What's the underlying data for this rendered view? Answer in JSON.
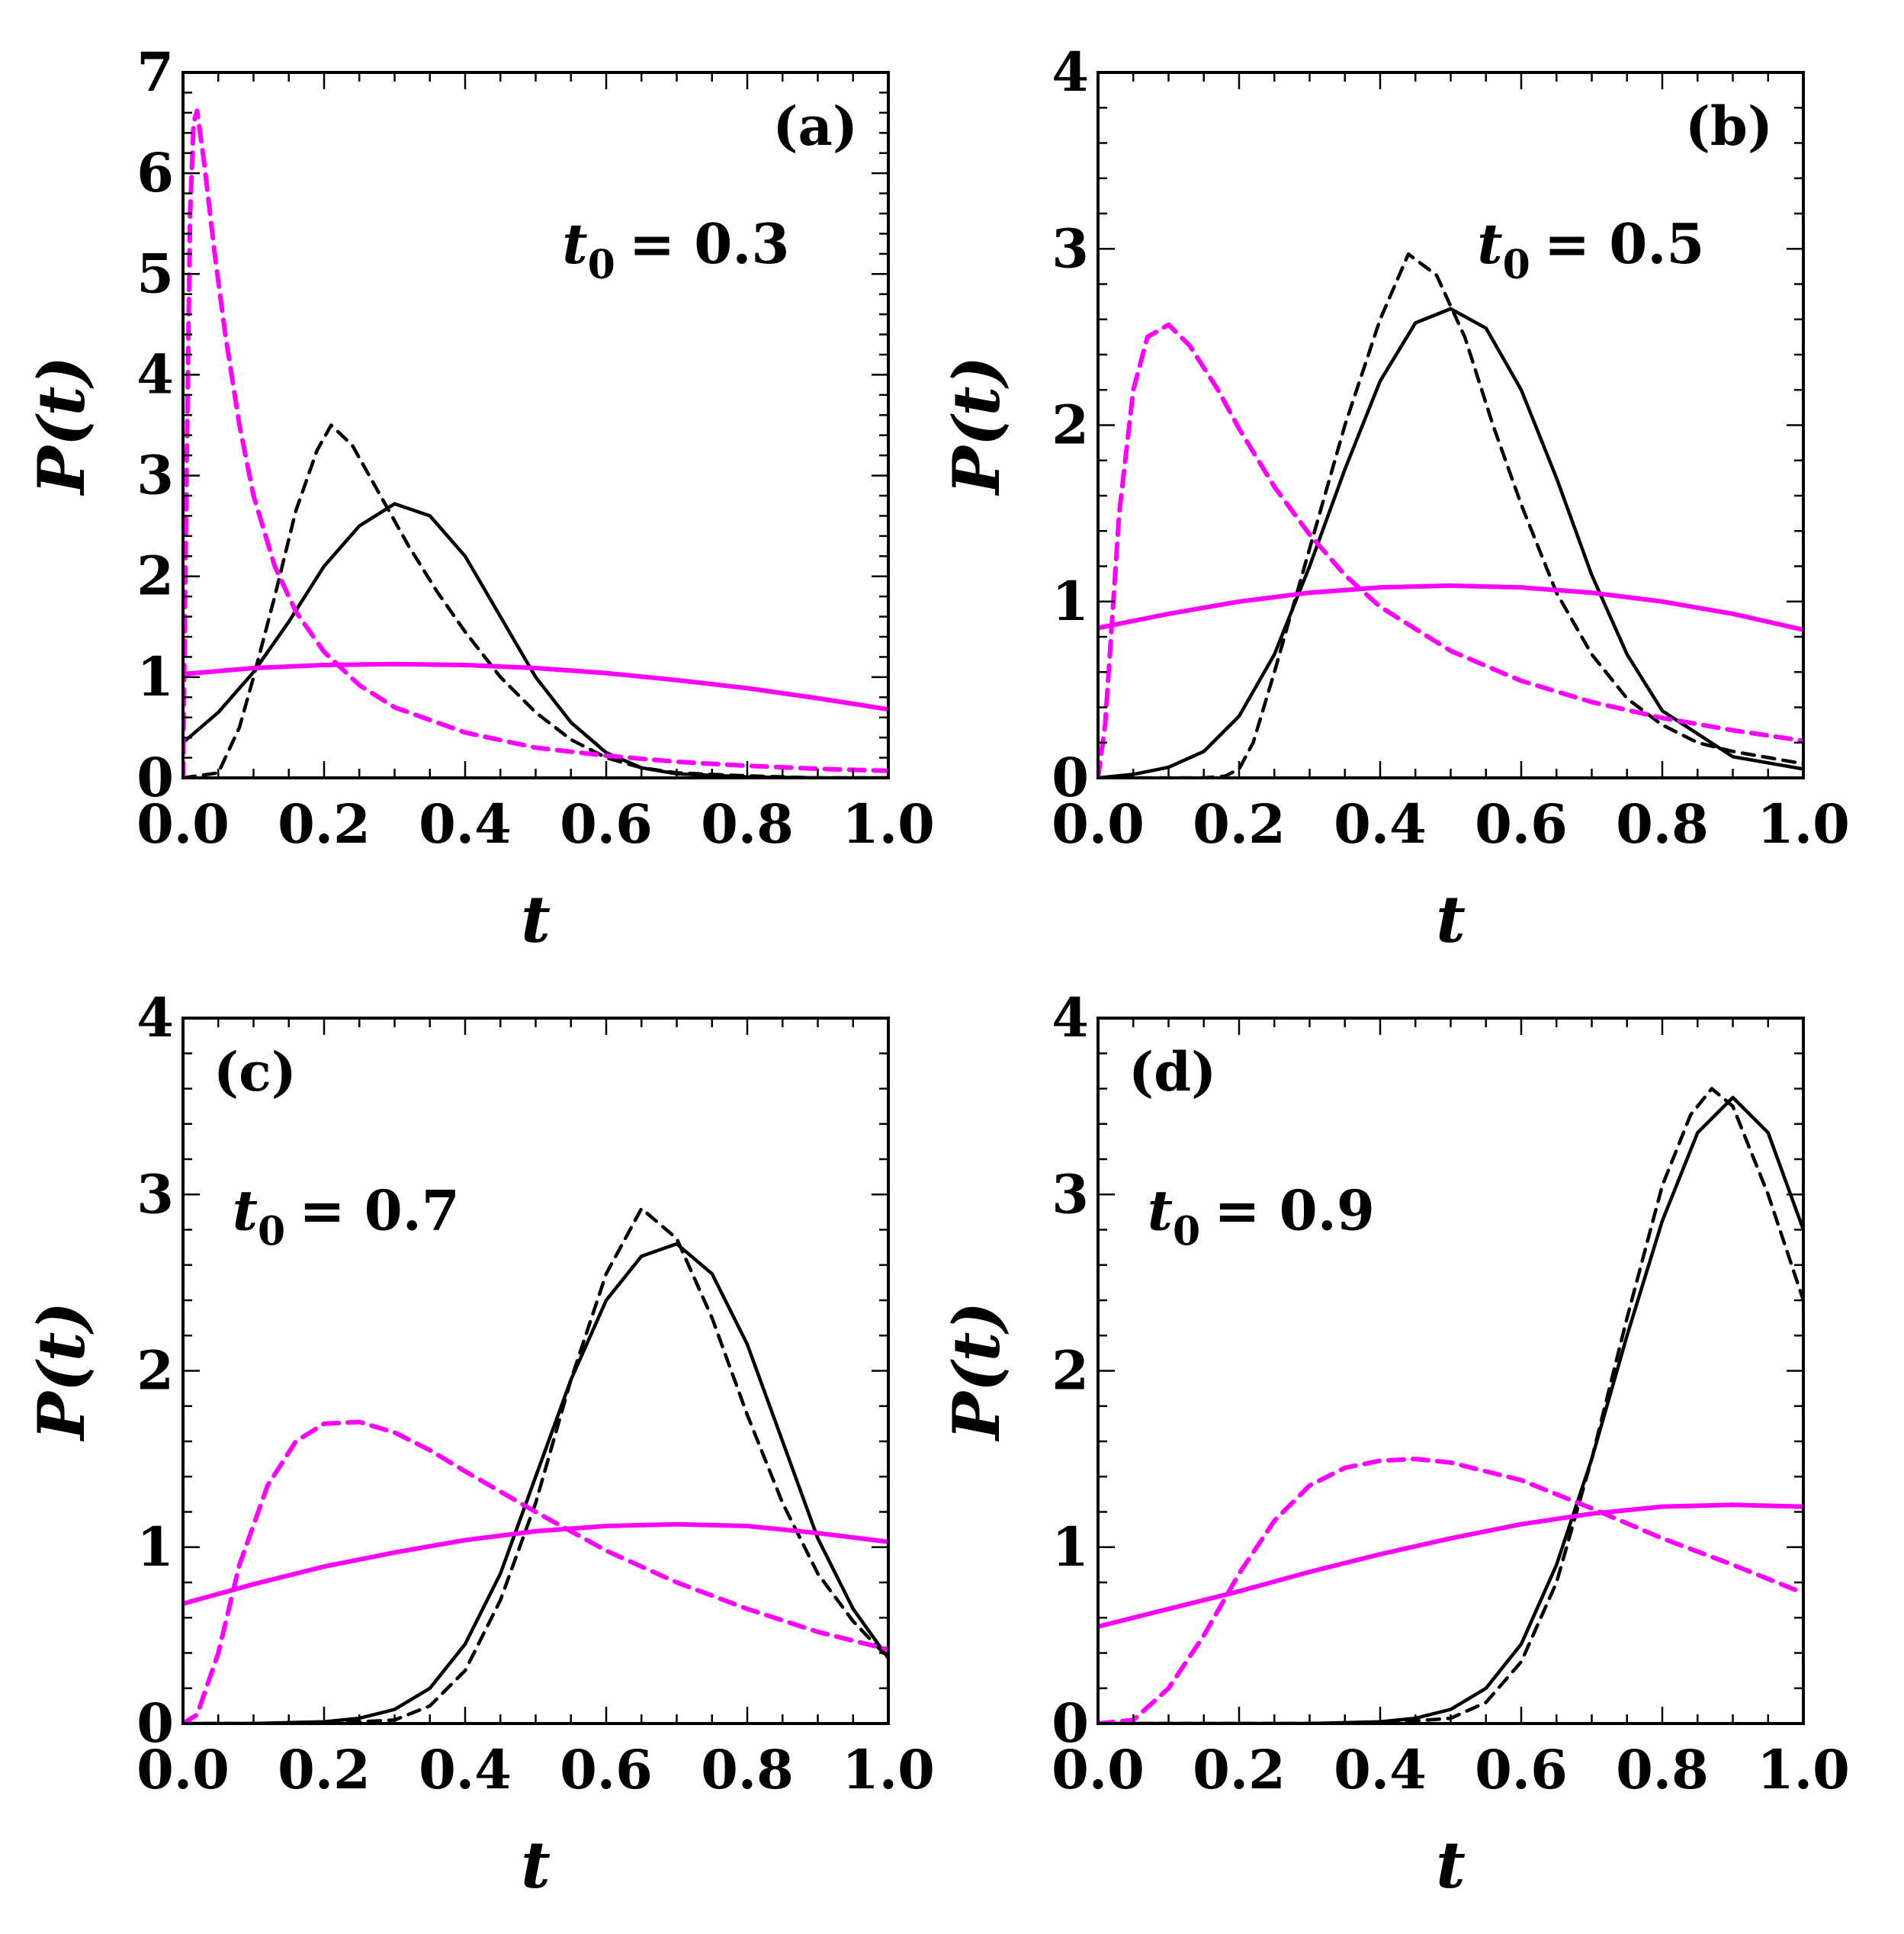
{
  "colors": {
    "black": "#000000",
    "magenta": "#ff00ff"
  },
  "chart_data": [
    {
      "type": "line",
      "panel": "(a)",
      "annotation": {
        "var": "t",
        "sub": "0",
        "value": "= 0.3"
      },
      "xlabel": "t",
      "ylabel": "P(t)",
      "xlim": [
        0,
        1
      ],
      "ylim": [
        0,
        7
      ],
      "xticks": [
        "0.0",
        "0.2",
        "0.4",
        "0.6",
        "0.8",
        "1.0"
      ],
      "yticks": [
        "0",
        "1",
        "2",
        "3",
        "4",
        "5",
        "6",
        "7"
      ],
      "series": [
        {
          "name": "black-solid",
          "color": "#000000",
          "dash": "solid",
          "x": [
            0,
            0.05,
            0.1,
            0.15,
            0.2,
            0.25,
            0.3,
            0.35,
            0.4,
            0.45,
            0.5,
            0.55,
            0.6,
            0.65,
            0.7,
            0.8,
            0.9,
            1.0
          ],
          "y": [
            0.35,
            0.65,
            1.05,
            1.55,
            2.1,
            2.5,
            2.72,
            2.6,
            2.2,
            1.6,
            1.0,
            0.55,
            0.25,
            0.1,
            0.04,
            0.01,
            0,
            0
          ]
        },
        {
          "name": "black-dashed",
          "color": "#000000",
          "dash": "dashed",
          "x": [
            0,
            0.05,
            0.08,
            0.1,
            0.13,
            0.16,
            0.19,
            0.21,
            0.24,
            0.28,
            0.32,
            0.36,
            0.4,
            0.45,
            0.5,
            0.55,
            0.6,
            0.65,
            0.7,
            0.8,
            0.9,
            1.0
          ],
          "y": [
            0,
            0.05,
            0.5,
            1.0,
            1.8,
            2.65,
            3.25,
            3.5,
            3.3,
            2.8,
            2.3,
            1.85,
            1.45,
            1.0,
            0.65,
            0.38,
            0.2,
            0.1,
            0.05,
            0.02,
            0,
            0
          ]
        },
        {
          "name": "magenta-solid",
          "color": "#ff00ff",
          "dash": "solid",
          "x": [
            0,
            0.1,
            0.2,
            0.3,
            0.4,
            0.5,
            0.6,
            0.7,
            0.8,
            0.9,
            1.0
          ],
          "y": [
            1.03,
            1.09,
            1.12,
            1.13,
            1.12,
            1.09,
            1.04,
            0.97,
            0.89,
            0.79,
            0.68
          ]
        },
        {
          "name": "magenta-dashed",
          "color": "#ff00ff",
          "dash": "dashed",
          "x": [
            0,
            0.005,
            0.01,
            0.015,
            0.02,
            0.03,
            0.045,
            0.06,
            0.08,
            0.1,
            0.13,
            0.16,
            0.2,
            0.25,
            0.3,
            0.4,
            0.5,
            0.6,
            0.7,
            0.8,
            0.9,
            1.0
          ],
          "y": [
            0,
            3.0,
            5.6,
            6.5,
            6.62,
            6.1,
            5.2,
            4.4,
            3.5,
            2.8,
            2.1,
            1.65,
            1.25,
            0.92,
            0.7,
            0.45,
            0.3,
            0.22,
            0.16,
            0.12,
            0.09,
            0.07
          ]
        }
      ]
    },
    {
      "type": "line",
      "panel": "(b)",
      "annotation": {
        "var": "t",
        "sub": "0",
        "value": "= 0.5"
      },
      "xlabel": "t",
      "ylabel": "P(t)",
      "xlim": [
        0,
        1
      ],
      "ylim": [
        0,
        4
      ],
      "xticks": [
        "0.0",
        "0.2",
        "0.4",
        "0.6",
        "0.8",
        "1.0"
      ],
      "yticks": [
        "0",
        "1",
        "2",
        "3",
        "4"
      ],
      "series": [
        {
          "name": "black-solid",
          "color": "#000000",
          "dash": "solid",
          "x": [
            0,
            0.05,
            0.1,
            0.15,
            0.2,
            0.25,
            0.3,
            0.35,
            0.4,
            0.45,
            0.5,
            0.55,
            0.6,
            0.65,
            0.7,
            0.75,
            0.8,
            0.9,
            1.0
          ],
          "y": [
            0,
            0.02,
            0.06,
            0.15,
            0.35,
            0.7,
            1.2,
            1.75,
            2.25,
            2.58,
            2.66,
            2.55,
            2.2,
            1.7,
            1.15,
            0.7,
            0.38,
            0.12,
            0.05
          ]
        },
        {
          "name": "black-dashed",
          "color": "#000000",
          "dash": "dashed",
          "x": [
            0,
            0.1,
            0.15,
            0.18,
            0.2,
            0.22,
            0.25,
            0.3,
            0.35,
            0.4,
            0.44,
            0.48,
            0.52,
            0.56,
            0.6,
            0.65,
            0.7,
            0.75,
            0.8,
            0.85,
            0.9,
            1.0
          ],
          "y": [
            0,
            0,
            0,
            0.01,
            0.05,
            0.2,
            0.6,
            1.3,
            2.0,
            2.6,
            2.97,
            2.85,
            2.5,
            2.0,
            1.55,
            1.05,
            0.7,
            0.45,
            0.3,
            0.2,
            0.15,
            0.08
          ]
        },
        {
          "name": "magenta-solid",
          "color": "#ff00ff",
          "dash": "solid",
          "x": [
            0,
            0.1,
            0.2,
            0.3,
            0.4,
            0.5,
            0.6,
            0.7,
            0.8,
            0.9,
            1.0
          ],
          "y": [
            0.85,
            0.93,
            1.0,
            1.05,
            1.08,
            1.09,
            1.08,
            1.05,
            1.0,
            0.93,
            0.84
          ]
        },
        {
          "name": "magenta-dashed",
          "color": "#ff00ff",
          "dash": "dashed",
          "x": [
            0,
            0.01,
            0.03,
            0.05,
            0.07,
            0.1,
            0.13,
            0.17,
            0.2,
            0.25,
            0.3,
            0.35,
            0.4,
            0.5,
            0.6,
            0.7,
            0.8,
            0.9,
            1.0
          ],
          "y": [
            0,
            0.3,
            1.5,
            2.2,
            2.5,
            2.57,
            2.45,
            2.2,
            1.98,
            1.65,
            1.38,
            1.15,
            0.97,
            0.72,
            0.55,
            0.43,
            0.34,
            0.27,
            0.21
          ]
        }
      ]
    },
    {
      "type": "line",
      "panel": "(c)",
      "annotation": {
        "var": "t",
        "sub": "0",
        "value": "= 0.7"
      },
      "xlabel": "t",
      "ylabel": "P(t)",
      "xlim": [
        0,
        1
      ],
      "ylim": [
        0,
        4
      ],
      "xticks": [
        "0.0",
        "0.2",
        "0.4",
        "0.6",
        "0.8",
        "1.0"
      ],
      "yticks": [
        "0",
        "1",
        "2",
        "3",
        "4"
      ],
      "series": [
        {
          "name": "black-solid",
          "color": "#000000",
          "dash": "solid",
          "x": [
            0,
            0.1,
            0.2,
            0.25,
            0.3,
            0.35,
            0.4,
            0.45,
            0.5,
            0.55,
            0.6,
            0.65,
            0.7,
            0.75,
            0.8,
            0.85,
            0.9,
            0.95,
            1.0
          ],
          "y": [
            0,
            0,
            0.01,
            0.03,
            0.08,
            0.2,
            0.45,
            0.85,
            1.4,
            1.95,
            2.4,
            2.65,
            2.72,
            2.55,
            2.15,
            1.6,
            1.05,
            0.65,
            0.37
          ]
        },
        {
          "name": "black-dashed",
          "color": "#000000",
          "dash": "dashed",
          "x": [
            0,
            0.2,
            0.3,
            0.35,
            0.4,
            0.45,
            0.5,
            0.55,
            0.6,
            0.65,
            0.7,
            0.75,
            0.8,
            0.85,
            0.9,
            0.95,
            1.0
          ],
          "y": [
            0,
            0,
            0.02,
            0.1,
            0.3,
            0.7,
            1.25,
            1.95,
            2.55,
            2.92,
            2.75,
            2.3,
            1.75,
            1.25,
            0.85,
            0.58,
            0.37
          ]
        },
        {
          "name": "magenta-solid",
          "color": "#ff00ff",
          "dash": "solid",
          "x": [
            0,
            0.1,
            0.2,
            0.3,
            0.4,
            0.5,
            0.6,
            0.7,
            0.8,
            0.9,
            1.0
          ],
          "y": [
            0.68,
            0.79,
            0.89,
            0.97,
            1.04,
            1.09,
            1.12,
            1.13,
            1.12,
            1.08,
            1.03
          ]
        },
        {
          "name": "magenta-dashed",
          "color": "#ff00ff",
          "dash": "dashed",
          "x": [
            0,
            0.02,
            0.05,
            0.08,
            0.12,
            0.16,
            0.2,
            0.25,
            0.3,
            0.35,
            0.4,
            0.5,
            0.6,
            0.7,
            0.8,
            0.9,
            1.0
          ],
          "y": [
            0,
            0.05,
            0.4,
            0.9,
            1.35,
            1.6,
            1.7,
            1.71,
            1.65,
            1.55,
            1.43,
            1.2,
            0.98,
            0.8,
            0.65,
            0.52,
            0.42
          ]
        }
      ]
    },
    {
      "type": "line",
      "panel": "(d)",
      "annotation": {
        "var": "t",
        "sub": "0",
        "value": "= 0.9"
      },
      "xlabel": "t",
      "ylabel": "P(t)",
      "xlim": [
        0,
        1
      ],
      "ylim": [
        0,
        4
      ],
      "xticks": [
        "0.0",
        "0.2",
        "0.4",
        "0.6",
        "0.8",
        "1.0"
      ],
      "yticks": [
        "0",
        "1",
        "2",
        "3",
        "4"
      ],
      "series": [
        {
          "name": "black-solid",
          "color": "#000000",
          "dash": "solid",
          "x": [
            0,
            0.3,
            0.4,
            0.45,
            0.5,
            0.55,
            0.6,
            0.65,
            0.7,
            0.75,
            0.8,
            0.85,
            0.9,
            0.95,
            1.0
          ],
          "y": [
            0,
            0,
            0.01,
            0.03,
            0.08,
            0.2,
            0.45,
            0.9,
            1.5,
            2.2,
            2.85,
            3.35,
            3.55,
            3.35,
            2.8
          ]
        },
        {
          "name": "black-dashed",
          "color": "#000000",
          "dash": "dashed",
          "x": [
            0,
            0.4,
            0.5,
            0.55,
            0.6,
            0.65,
            0.7,
            0.75,
            0.8,
            0.84,
            0.87,
            0.9,
            0.95,
            1.0
          ],
          "y": [
            0,
            0,
            0.03,
            0.12,
            0.35,
            0.8,
            1.5,
            2.3,
            3.05,
            3.45,
            3.6,
            3.5,
            3.0,
            2.4
          ]
        },
        {
          "name": "magenta-solid",
          "color": "#ff00ff",
          "dash": "solid",
          "x": [
            0,
            0.1,
            0.2,
            0.3,
            0.4,
            0.5,
            0.6,
            0.7,
            0.8,
            0.9,
            1.0
          ],
          "y": [
            0.55,
            0.65,
            0.75,
            0.86,
            0.96,
            1.05,
            1.13,
            1.19,
            1.23,
            1.24,
            1.23
          ]
        },
        {
          "name": "magenta-dashed",
          "color": "#ff00ff",
          "dash": "dashed",
          "x": [
            0,
            0.05,
            0.1,
            0.15,
            0.2,
            0.25,
            0.3,
            0.35,
            0.4,
            0.45,
            0.5,
            0.6,
            0.7,
            0.8,
            0.9,
            1.0
          ],
          "y": [
            0,
            0.02,
            0.2,
            0.5,
            0.85,
            1.15,
            1.35,
            1.45,
            1.49,
            1.5,
            1.48,
            1.38,
            1.22,
            1.05,
            0.9,
            0.74
          ]
        }
      ]
    }
  ]
}
